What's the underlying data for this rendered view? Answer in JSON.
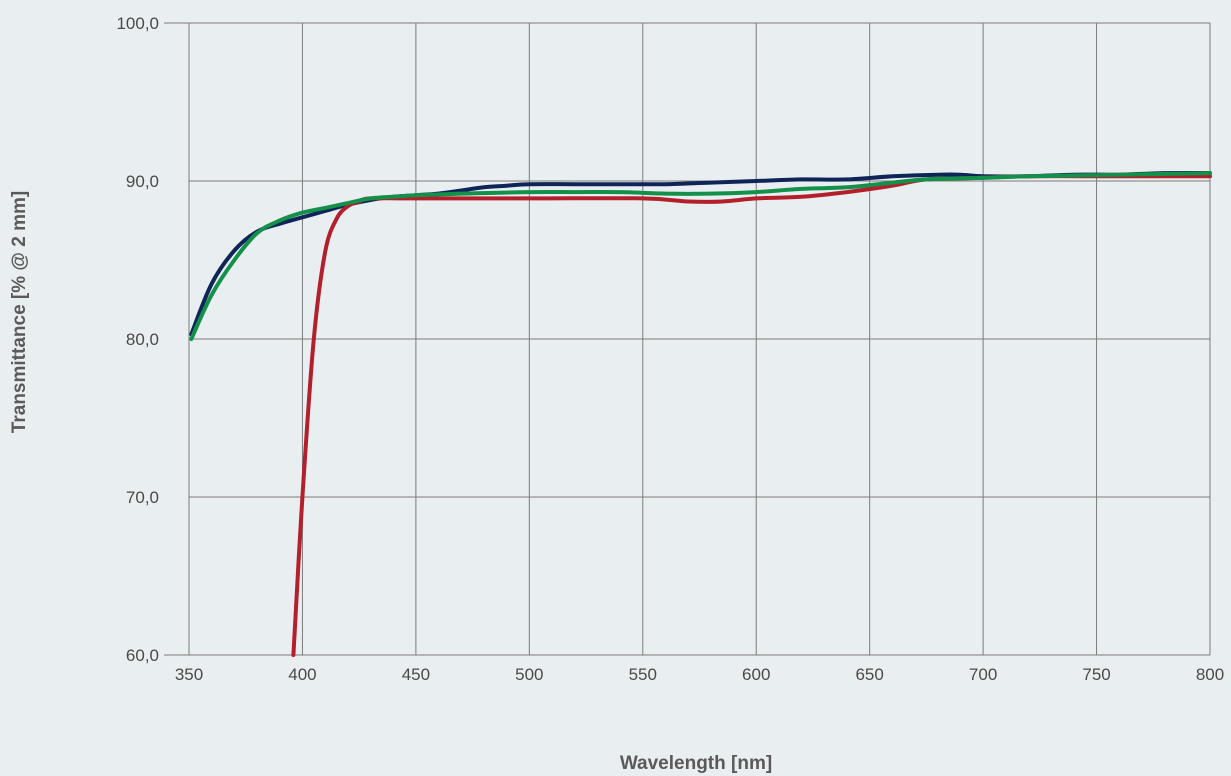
{
  "chart_data": {
    "type": "line",
    "title": "",
    "xlabel": "Wavelength [nm]",
    "ylabel": "Transmittance [% @ 2 mm]",
    "xlim": [
      350,
      800
    ],
    "ylim": [
      60,
      100
    ],
    "x_ticks": [
      350,
      400,
      450,
      500,
      550,
      600,
      650,
      700,
      750,
      800
    ],
    "x_tick_labels": [
      "350",
      "400",
      "450",
      "500",
      "550",
      "600",
      "650",
      "700",
      "750",
      "800"
    ],
    "y_ticks": [
      60,
      70,
      80,
      90,
      100
    ],
    "y_tick_labels": [
      "60,0",
      "70,0",
      "80,0",
      "90,0",
      "100,0"
    ],
    "grid": true,
    "legend": "none",
    "series": [
      {
        "color": "#0f2557",
        "points": [
          [
            351,
            80.3
          ],
          [
            360,
            83.5
          ],
          [
            370,
            85.6
          ],
          [
            380,
            86.8
          ],
          [
            390,
            87.3
          ],
          [
            400,
            87.7
          ],
          [
            410,
            88.1
          ],
          [
            420,
            88.5
          ],
          [
            430,
            88.8
          ],
          [
            440,
            89.0
          ],
          [
            450,
            89.1
          ],
          [
            460,
            89.2
          ],
          [
            470,
            89.4
          ],
          [
            480,
            89.6
          ],
          [
            490,
            89.7
          ],
          [
            500,
            89.8
          ],
          [
            520,
            89.8
          ],
          [
            540,
            89.8
          ],
          [
            560,
            89.8
          ],
          [
            580,
            89.9
          ],
          [
            600,
            90.0
          ],
          [
            620,
            90.1
          ],
          [
            640,
            90.1
          ],
          [
            660,
            90.3
          ],
          [
            680,
            90.4
          ],
          [
            690,
            90.4
          ],
          [
            700,
            90.3
          ],
          [
            720,
            90.3
          ],
          [
            740,
            90.4
          ],
          [
            760,
            90.4
          ],
          [
            780,
            90.5
          ],
          [
            800,
            90.5
          ]
        ]
      },
      {
        "color": "#b3202b",
        "points": [
          [
            396,
            60.0
          ],
          [
            400,
            70.0
          ],
          [
            405,
            80.0
          ],
          [
            410,
            85.5
          ],
          [
            415,
            87.6
          ],
          [
            420,
            88.4
          ],
          [
            425,
            88.7
          ],
          [
            430,
            88.9
          ],
          [
            450,
            88.9
          ],
          [
            500,
            88.9
          ],
          [
            550,
            88.9
          ],
          [
            570,
            88.7
          ],
          [
            585,
            88.7
          ],
          [
            600,
            88.9
          ],
          [
            620,
            89.0
          ],
          [
            640,
            89.3
          ],
          [
            660,
            89.7
          ],
          [
            675,
            90.1
          ],
          [
            700,
            90.2
          ],
          [
            720,
            90.3
          ],
          [
            760,
            90.3
          ],
          [
            800,
            90.3
          ]
        ]
      },
      {
        "color": "#13904a",
        "points": [
          [
            351,
            80.0
          ],
          [
            360,
            82.8
          ],
          [
            370,
            85.0
          ],
          [
            380,
            86.7
          ],
          [
            390,
            87.5
          ],
          [
            400,
            88.0
          ],
          [
            410,
            88.3
          ],
          [
            420,
            88.6
          ],
          [
            430,
            88.9
          ],
          [
            440,
            89.0
          ],
          [
            450,
            89.1
          ],
          [
            470,
            89.2
          ],
          [
            500,
            89.3
          ],
          [
            520,
            89.3
          ],
          [
            540,
            89.3
          ],
          [
            560,
            89.2
          ],
          [
            580,
            89.2
          ],
          [
            600,
            89.3
          ],
          [
            620,
            89.5
          ],
          [
            640,
            89.6
          ],
          [
            660,
            89.9
          ],
          [
            675,
            90.1
          ],
          [
            700,
            90.2
          ],
          [
            720,
            90.3
          ],
          [
            760,
            90.4
          ],
          [
            800,
            90.5
          ]
        ]
      }
    ]
  }
}
